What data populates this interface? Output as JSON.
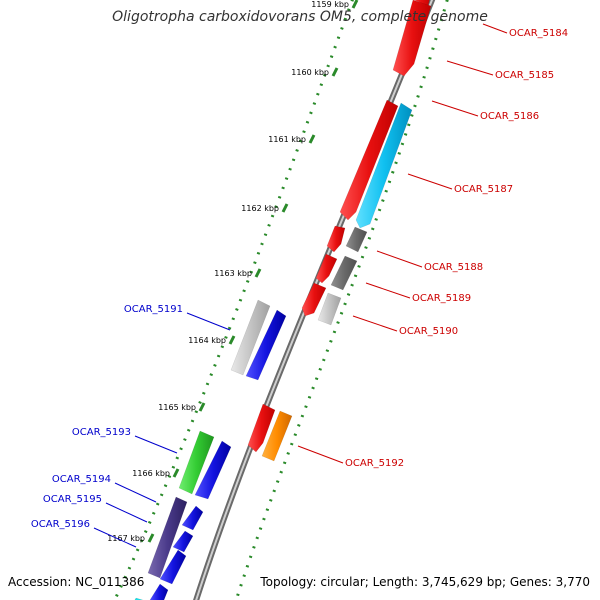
{
  "title": "Oligotropha carboxidovorans OM5, complete genome",
  "accession": "Accession: NC_011386",
  "summary": "Topology: circular; Length: 3,745,629 bp; Genes: 3,770",
  "colors": {
    "backbone": "#888888",
    "ruler": "#2a8a2a",
    "forward_label": "#cc0000",
    "reverse_label": "#0000cc"
  },
  "ruler_ticks": [
    {
      "label": "1159 kbp"
    },
    {
      "label": "1160 kbp"
    },
    {
      "label": "1161 kbp"
    },
    {
      "label": "1162 kbp"
    },
    {
      "label": "1163 kbp"
    },
    {
      "label": "1164 kbp"
    },
    {
      "label": "1165 kbp"
    },
    {
      "label": "1166 kbp"
    },
    {
      "label": "1167 kbp"
    }
  ],
  "genes_forward": [
    {
      "name": "OCAR_5184",
      "color": "#e8191a"
    },
    {
      "name": "OCAR_5185",
      "color": "#e8191a"
    },
    {
      "name": "OCAR_5186",
      "color": "#e8191a"
    },
    {
      "name": "OCAR_5187",
      "color": "#19bfe8"
    },
    {
      "name": "OCAR_5188",
      "color": "#e8191a"
    },
    {
      "name": "OCAR_5189",
      "color": "#707070"
    },
    {
      "name": "OCAR_5190",
      "color": "#c0c0c0"
    },
    {
      "name": "OCAR_5192",
      "color": "#ff8c00"
    }
  ],
  "genes_reverse": [
    {
      "name": "OCAR_5191",
      "color": "#c0c0c0"
    },
    {
      "name": "OCAR_5193",
      "color": "#33cc33"
    },
    {
      "name": "OCAR_5194",
      "color": "#4a3a8a"
    },
    {
      "name": "OCAR_5195",
      "color": "#1414d8"
    },
    {
      "name": "OCAR_5196",
      "color": "#1414d8"
    }
  ]
}
